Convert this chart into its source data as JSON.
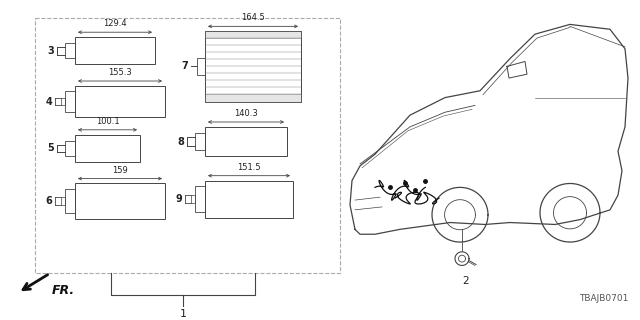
{
  "bg_color": "#ffffff",
  "lc": "#444444",
  "tc": "#222222",
  "title_text": "TBAJB0701",
  "parts": [
    {
      "num": "3",
      "label": "129.4",
      "col": 0,
      "row": 0
    },
    {
      "num": "4",
      "label": "155.3",
      "col": 0,
      "row": 1
    },
    {
      "num": "5",
      "label": "100.1",
      "col": 0,
      "row": 2
    },
    {
      "num": "6",
      "label": "159",
      "col": 0,
      "row": 3
    },
    {
      "num": "7",
      "label": "164.5",
      "col": 1,
      "row": 0
    },
    {
      "num": "8",
      "label": "140.3",
      "col": 1,
      "row": 1
    },
    {
      "num": "9",
      "label": "151.5",
      "col": 1,
      "row": 2
    }
  ]
}
